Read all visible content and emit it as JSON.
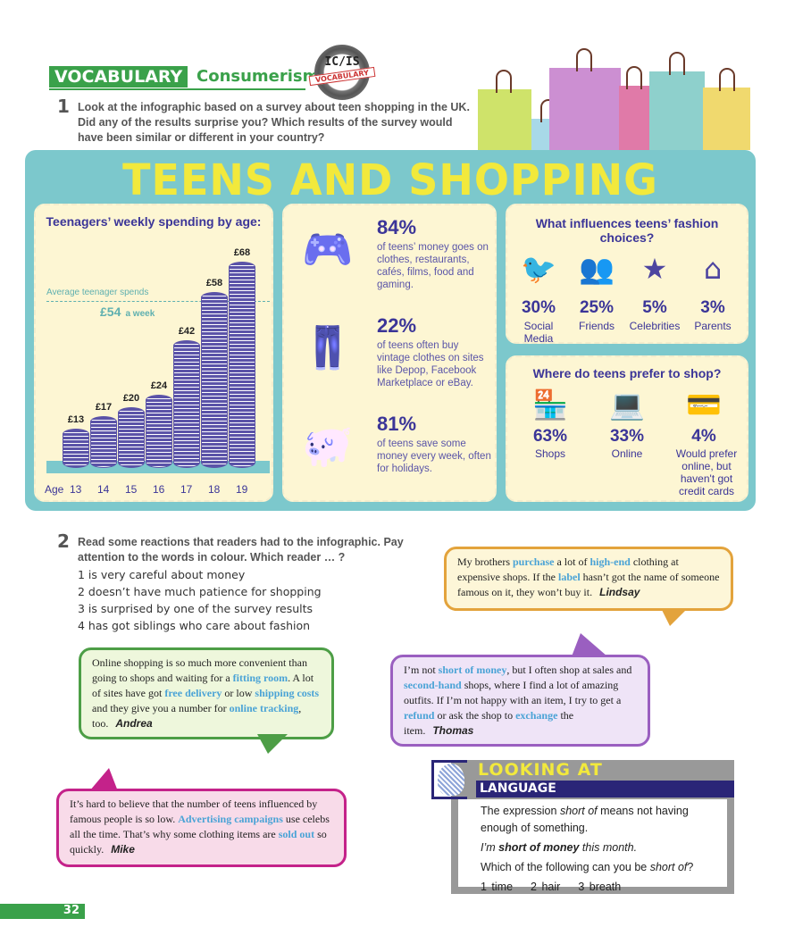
{
  "header": {
    "section": "VOCABULARY",
    "topic": "Consumerism",
    "badge_top": "IC/IS",
    "badge_bottom": "VOCABULARY"
  },
  "q1": {
    "number": "1",
    "text": "Look at the infographic based on a survey about teen shopping in the UK. Did any of the results surprise you? Which results of the survey would have been similar or different in your country?"
  },
  "infographic": {
    "title": "TEENS AND SHOPPING",
    "spending": {
      "title": "Teenagers’ weekly spending by age:",
      "avg_label": "Average teenager spends",
      "avg_value": "£54",
      "avg_unit": "a week",
      "age_label": "Age"
    },
    "facts": [
      {
        "pct": "84%",
        "text": "of teens’ money goes on clothes, restaurants, cafés, films, food and gaming.",
        "icon": "game-controller-icon"
      },
      {
        "pct": "22%",
        "text": "of teens often buy vintage clothes on sites like Depop, Facebook Marketplace or eBay.",
        "icon": "trousers-icon"
      },
      {
        "pct": "81%",
        "text": "of teens save some money every week, often for holidays.",
        "icon": "piggy-bank-icon"
      }
    ],
    "influences": {
      "title": "What influences teens’ fashion choices?",
      "items": [
        {
          "pct": "30%",
          "label": "Social Media",
          "icon": "social-media-icon"
        },
        {
          "pct": "25%",
          "label": "Friends",
          "icon": "friends-icon"
        },
        {
          "pct": "5%",
          "label": "Celebrities",
          "icon": "star-icon"
        },
        {
          "pct": "3%",
          "label": "Parents",
          "icon": "house-icon"
        }
      ]
    },
    "where": {
      "title": "Where do teens prefer to shop?",
      "items": [
        {
          "pct": "63%",
          "label": "Shops",
          "icon": "shop-icon"
        },
        {
          "pct": "33%",
          "label": "Online",
          "icon": "laptop-icon"
        },
        {
          "pct": "4%",
          "label": "Would prefer online, but haven't got credit cards",
          "icon": "credit-card-icon"
        }
      ]
    }
  },
  "chart_data": {
    "type": "bar",
    "title": "Teenagers’ weekly spending by age:",
    "xlabel": "Age",
    "categories": [
      "13",
      "14",
      "15",
      "16",
      "17",
      "18",
      "19"
    ],
    "values": [
      13,
      17,
      20,
      24,
      42,
      58,
      68
    ],
    "value_labels": [
      "£13",
      "£17",
      "£20",
      "£24",
      "£42",
      "£58",
      "£68"
    ],
    "reference_line": {
      "value": 54,
      "label": "Average teenager spends £54 a week"
    },
    "ylim": [
      0,
      70
    ],
    "grid": false
  },
  "q2": {
    "number": "2",
    "text": "Read some reactions that readers had to the infographic. Pay attention to the words in colour. Which reader … ?",
    "items": [
      "1  is very careful about money",
      "2  doesn’t have much patience for shopping",
      "3  is surprised by one of the survey results",
      "4  has got siblings who care about fashion"
    ]
  },
  "bubbles": {
    "lindsay": {
      "name": "Lindsay",
      "segments": [
        [
          "My brothers ",
          0
        ],
        [
          "purchase",
          1
        ],
        [
          " a lot of ",
          0
        ],
        [
          "high-end",
          1
        ],
        [
          " clothing at expensive shops. If the ",
          0
        ],
        [
          "label",
          1
        ],
        [
          " hasn’t got the name of someone famous on it, they won’t buy it.",
          0
        ]
      ]
    },
    "andrea": {
      "name": "Andrea",
      "segments": [
        [
          "Online shopping is so much more convenient than going to shops and waiting for a ",
          0
        ],
        [
          "fitting room",
          1
        ],
        [
          ". A lot of sites have got ",
          0
        ],
        [
          "free delivery",
          1
        ],
        [
          " or low ",
          0
        ],
        [
          "shipping costs",
          1
        ],
        [
          " and they give you a number for ",
          0
        ],
        [
          "online tracking",
          1
        ],
        [
          ", too.",
          0
        ]
      ]
    },
    "thomas": {
      "name": "Thomas",
      "segments": [
        [
          "I’m not ",
          0
        ],
        [
          "short of money",
          1
        ],
        [
          ", but I often shop at sales and ",
          0
        ],
        [
          "second-hand",
          1
        ],
        [
          " shops, where I find a lot of amazing outfits. If I’m not happy with an item, I try to get a ",
          0
        ],
        [
          "refund",
          1
        ],
        [
          " or ask the shop to ",
          0
        ],
        [
          "exchange",
          1
        ],
        [
          " the item.",
          0
        ]
      ]
    },
    "mike": {
      "name": "Mike",
      "segments": [
        [
          "It’s hard to believe that the number of teens influenced by famous people is so low. ",
          0
        ],
        [
          "Advertising campaigns",
          1
        ],
        [
          " use celebs all the time. That’s why some clothing items are ",
          0
        ],
        [
          "sold out",
          1
        ],
        [
          " so quickly.",
          0
        ]
      ]
    }
  },
  "looking_at_language": {
    "title1": "LOOKING AT",
    "title2": "LANGUAGE",
    "line1_a": "The expression ",
    "line1_em": "short of",
    "line1_b": " means not having enough of something.",
    "example_a": "I’m ",
    "example_b": "short of money",
    "example_c": " this month.",
    "question_a": "Which of the following can you be ",
    "question_em": "short of",
    "question_b": "?",
    "options": [
      "1  time",
      "2  hair",
      "3  breath"
    ]
  },
  "page_number": "32",
  "colors": {
    "green": "#3aa14a",
    "purple": "#3b3598",
    "teal": "#7cc8cc",
    "yellow": "#f2e93c",
    "highlight": "#4aa3d6"
  }
}
